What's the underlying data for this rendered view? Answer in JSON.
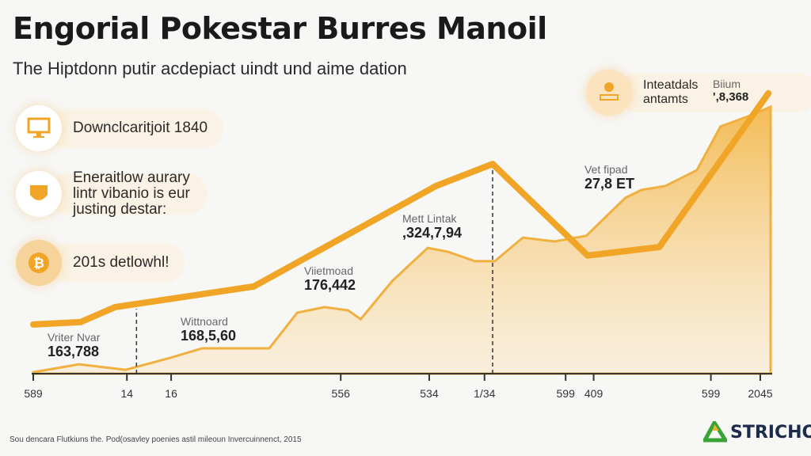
{
  "header": {
    "title": "Engorial Pokestar Burres Manoil",
    "subtitle": "The Hiptdonn putir acdepiact uindt und aime dation"
  },
  "callouts": [
    {
      "icon": "monitor-icon",
      "text": "Downclcaritjoit 1840"
    },
    {
      "icon": "shield-icon",
      "text": "Eneraitlow aurary lintr vibanio is eur justing destar:"
    },
    {
      "icon": "bitcoin-icon",
      "text": "201s detlowhl!"
    },
    {
      "icon": "bank-icon",
      "text": "Inteatdals antamts"
    }
  ],
  "annotations": [
    {
      "label": "Vriter Nvar",
      "value": "163,788"
    },
    {
      "label": "Wittnoard",
      "value": "168,5,60"
    },
    {
      "label": "Viietmoad",
      "value": "176,442"
    },
    {
      "label": "Mett Lintak",
      "value": ",324,7,94"
    },
    {
      "label": "Vet fipad",
      "value": "27,8 ET"
    },
    {
      "label": "Biium",
      "value": "',8,368"
    }
  ],
  "footer": {
    "source": "Sou dencara Flutkiuns the. Pod(osavley poenies astil mileoun Invercuinnenct, 2015",
    "logo": "STRICHO"
  },
  "colors": {
    "line": "#f0a526",
    "area": "#f3b94e",
    "axis": "#333333"
  },
  "chart_data": {
    "type": "area",
    "title": "Engorial Pokestar Burres Manoil",
    "xlim": [
      0,
      100
    ],
    "ylim": [
      0,
      100
    ],
    "x_ticks": [
      {
        "x": 0,
        "label": "589"
      },
      {
        "x": 12.7,
        "label": "14"
      },
      {
        "x": 18.7,
        "label": "16"
      },
      {
        "x": 41.7,
        "label": "556"
      },
      {
        "x": 53.7,
        "label": "534"
      },
      {
        "x": 61.2,
        "label": "1/34"
      },
      {
        "x": 72.2,
        "label": "599"
      },
      {
        "x": 76.0,
        "label": "409"
      },
      {
        "x": 91.9,
        "label": "599"
      },
      {
        "x": 98.6,
        "label": "2045"
      }
    ],
    "markers": [
      14,
      62.3
    ],
    "series": [
      {
        "name": "line",
        "type": "line",
        "points": [
          [
            0,
            16.7
          ],
          [
            6.4,
            17.5
          ],
          [
            11.1,
            22.6
          ],
          [
            29.9,
            29.6
          ],
          [
            54.6,
            63.7
          ],
          [
            62.3,
            71.2
          ],
          [
            75.2,
            40.1
          ],
          [
            84.9,
            43.0
          ],
          [
            99.7,
            95.2
          ]
        ]
      },
      {
        "name": "area",
        "type": "area",
        "points": [
          [
            0,
            0.5
          ],
          [
            6.2,
            3.2
          ],
          [
            12.5,
            1.3
          ],
          [
            18.6,
            5.4
          ],
          [
            22.9,
            8.6
          ],
          [
            32.0,
            8.6
          ],
          [
            35.8,
            20.7
          ],
          [
            39.5,
            22.6
          ],
          [
            42.7,
            21.5
          ],
          [
            44.4,
            18.5
          ],
          [
            48.7,
            31.5
          ],
          [
            53.5,
            42.7
          ],
          [
            56.2,
            41.4
          ],
          [
            59.9,
            38.2
          ],
          [
            62.6,
            38.2
          ],
          [
            66.4,
            46.2
          ],
          [
            70.7,
            44.9
          ],
          [
            75.0,
            46.8
          ],
          [
            80.3,
            59.7
          ],
          [
            82.5,
            62.4
          ],
          [
            85.7,
            63.7
          ],
          [
            90.0,
            69.1
          ],
          [
            93.2,
            83.9
          ],
          [
            97.5,
            87.9
          ],
          [
            100,
            90.6
          ]
        ]
      }
    ]
  }
}
